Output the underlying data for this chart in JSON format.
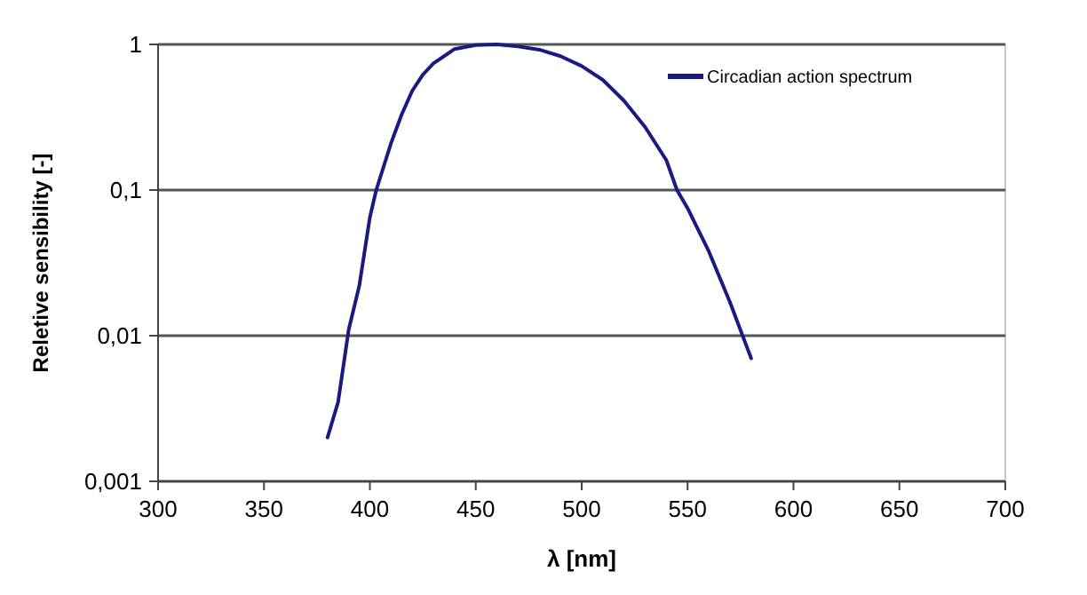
{
  "chart_data": {
    "type": "line",
    "xlabel": "λ [nm]",
    "ylabel": "Reletive sensibility [-]",
    "log": "y",
    "grid": "y",
    "legend": "top right",
    "line_style": "solid",
    "marker": "none",
    "xlim": [
      300,
      700
    ],
    "xticks": [
      300,
      350,
      400,
      450,
      500,
      550,
      600,
      650,
      700
    ],
    "ylim": [
      0.001,
      1
    ],
    "yticks": [
      {
        "value": 0.001,
        "label": "0,001"
      },
      {
        "value": 0.01,
        "label": "0,01"
      },
      {
        "value": 0.1,
        "label": "0,1"
      },
      1
    ],
    "series": [
      {
        "name": "Circadian action spectrum",
        "color": "#1a1a80",
        "x": [
          380,
          385,
          390,
          395,
          400,
          403,
          410,
          415,
          420,
          425,
          430,
          440,
          450,
          460,
          470,
          480,
          490,
          500,
          510,
          520,
          530,
          540,
          545,
          550,
          560,
          570,
          580
        ],
        "values": [
          0.002,
          0.0035,
          0.011,
          0.022,
          0.065,
          0.1,
          0.21,
          0.33,
          0.48,
          0.62,
          0.74,
          0.93,
          0.99,
          1.0,
          0.97,
          0.92,
          0.83,
          0.71,
          0.57,
          0.41,
          0.27,
          0.16,
          0.1,
          0.075,
          0.038,
          0.017,
          0.007
        ]
      }
    ]
  }
}
